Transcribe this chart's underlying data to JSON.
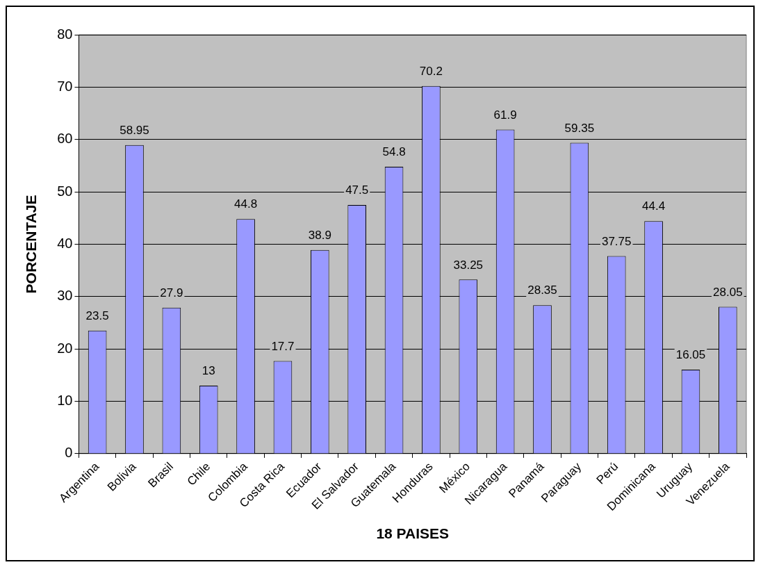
{
  "chart_data": {
    "type": "bar",
    "xlabel": "18 PAISES",
    "ylabel": "PORCENTAJE",
    "categories": [
      "Argentina",
      "Bolivia",
      "Brasil",
      "Chile",
      "Colombia",
      "Costa Rica",
      "Ecuador",
      "El Salvador",
      "Guatemala",
      "Honduras",
      "México",
      "Nicaragua",
      "Panamá",
      "Paraguay",
      "Perú",
      "Dominicana",
      "Uruguay",
      "Venezuela"
    ],
    "values": [
      23.5,
      58.95,
      27.9,
      13,
      44.8,
      17.7,
      38.9,
      47.5,
      54.8,
      70.2,
      33.25,
      61.9,
      28.35,
      59.35,
      37.75,
      44.4,
      16.05,
      28.05
    ],
    "color": "#9999ff",
    "ylim": [
      0,
      80
    ],
    "yticks": [
      0,
      10,
      20,
      30,
      40,
      50,
      60,
      70,
      80
    ],
    "grid": "y",
    "legend": false,
    "data_labels": true
  }
}
